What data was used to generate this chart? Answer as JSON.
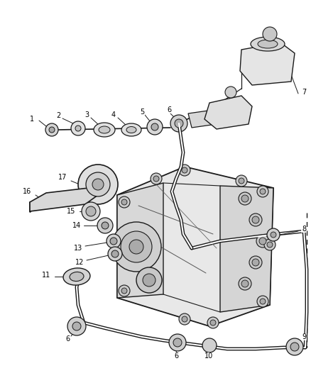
{
  "background_color": "#ffffff",
  "line_color": "#1a1a1a",
  "label_color": "#000000",
  "label_fontsize": 7.0,
  "fig_width": 4.38,
  "fig_height": 5.33,
  "dpi": 100
}
